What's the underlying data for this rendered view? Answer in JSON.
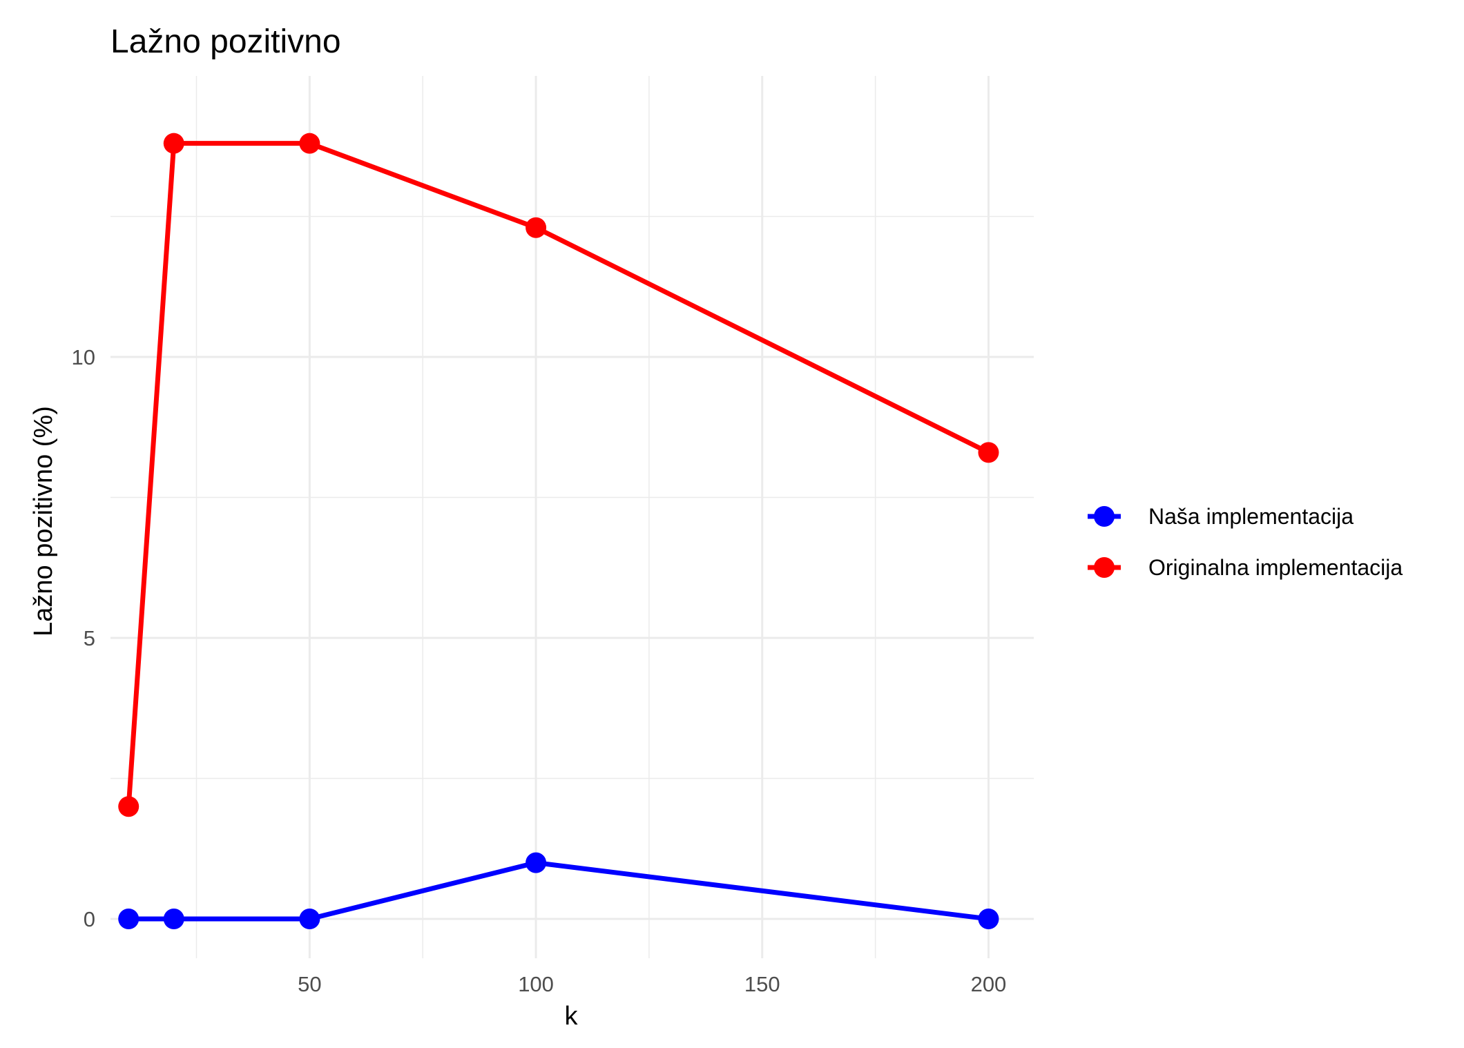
{
  "chart_data": {
    "type": "line",
    "title": "Lažno pozitivno",
    "xlabel": "k",
    "ylabel": "Lažno pozitivno (%)",
    "x": [
      10,
      20,
      50,
      100,
      200
    ],
    "xlim": [
      6,
      210
    ],
    "ylim": [
      -0.7,
      15.0
    ],
    "xticks": [
      50,
      100,
      150,
      200
    ],
    "yticks": [
      0,
      5,
      10
    ],
    "xtick_labels": [
      "50",
      "100",
      "150",
      "200"
    ],
    "ytick_labels": [
      "0",
      "5",
      "10"
    ],
    "x_minor_gridlines": [
      25,
      75,
      125,
      175
    ],
    "y_minor_gridlines": [
      2.5,
      7.5,
      12.5
    ],
    "grid": true,
    "legend_position": "right",
    "series": [
      {
        "name": "Naša implementacija",
        "color": "#0000ff",
        "values": [
          0,
          0,
          0,
          1,
          0
        ]
      },
      {
        "name": "Originalna implementacija",
        "color": "#ff0000",
        "values": [
          2,
          13.8,
          13.8,
          12.3,
          8.3
        ]
      }
    ]
  }
}
